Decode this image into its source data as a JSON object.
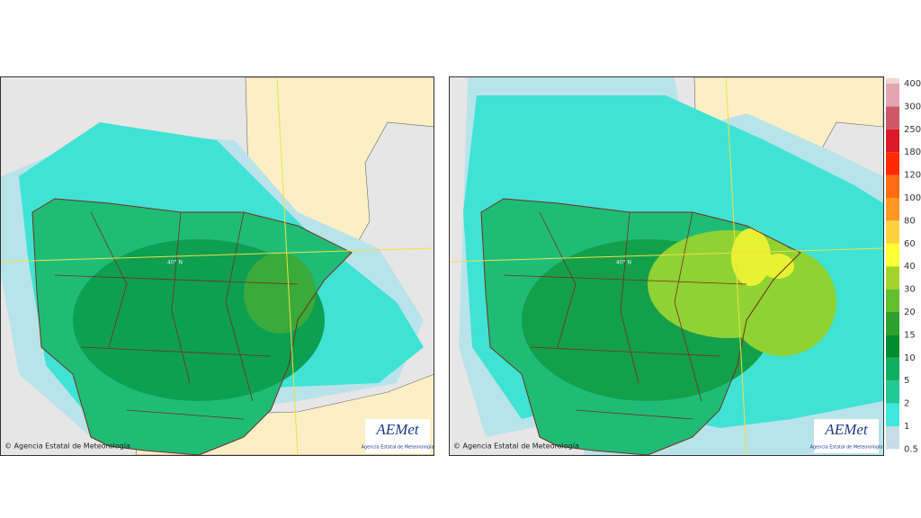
{
  "panels": [
    {
      "copyright": "© Agencia Estatal de Meteorología",
      "logo": "AEMet",
      "logo_caption": "Agencia Estatal de Meteorología",
      "parallel_label": "40° N"
    },
    {
      "copyright": "© Agencia Estatal de Meteorología",
      "logo": "AEMet",
      "logo_caption": "Agencia Estatal de Meteorología",
      "parallel_label": "40° N"
    }
  ],
  "legend": {
    "levels": [
      0.5,
      1,
      2,
      5,
      10,
      15,
      20,
      30,
      40,
      60,
      80,
      100,
      120,
      180,
      250,
      300,
      400
    ],
    "colors": [
      "#c6dde6",
      "#3fe8da",
      "#22c994",
      "#0fae5e",
      "#008b2e",
      "#2ea02c",
      "#62bf2e",
      "#a2d62a",
      "#ffff33",
      "#ffd23c",
      "#ff9820",
      "#ff6a12",
      "#ff2a00",
      "#dc1a2a",
      "#cf5866",
      "#e2a6ae",
      "#f3d4d6"
    ]
  }
}
